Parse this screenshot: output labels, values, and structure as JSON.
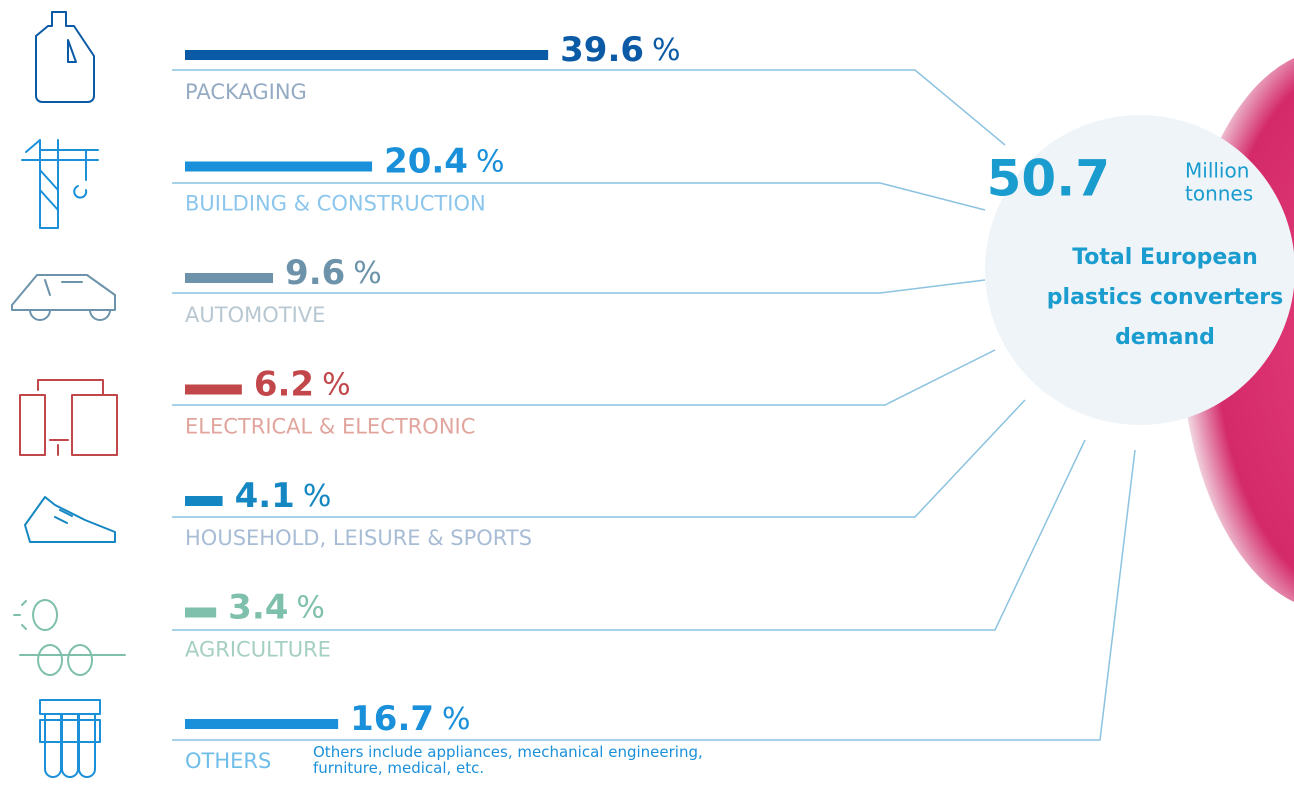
{
  "chart_data": {
    "type": "bar",
    "categories": [
      "PACKAGING",
      "BUILDING & CONSTRUCTION",
      "AUTOMOTIVE",
      "ELECTRICAL & ELECTRONIC",
      "HOUSEHOLD, LEISURE & SPORTS",
      "AGRICULTURE",
      "OTHERS"
    ],
    "values": [
      39.6,
      20.4,
      9.6,
      6.2,
      4.1,
      3.4,
      16.7
    ],
    "unit": "%",
    "colors": [
      "#0b5aa6",
      "#1a90da",
      "#6c93aa",
      "#c2474a",
      "#1487c2",
      "#7fc0ad",
      "#1a90da"
    ],
    "label_colors": [
      "#95abc4",
      "#8cc6ec",
      "#b8c8d2",
      "#e2a59d",
      "#a8bdd5",
      "#a6cfc3",
      "#6fbde9"
    ],
    "note": "Others include appliances, mechanical engineering, furniture, medical, etc.",
    "total": {
      "value": 50.7,
      "unit_line1": "Million",
      "unit_line2": "tonnes",
      "caption": [
        "Total European",
        "plastics converters",
        "demand"
      ]
    }
  }
}
